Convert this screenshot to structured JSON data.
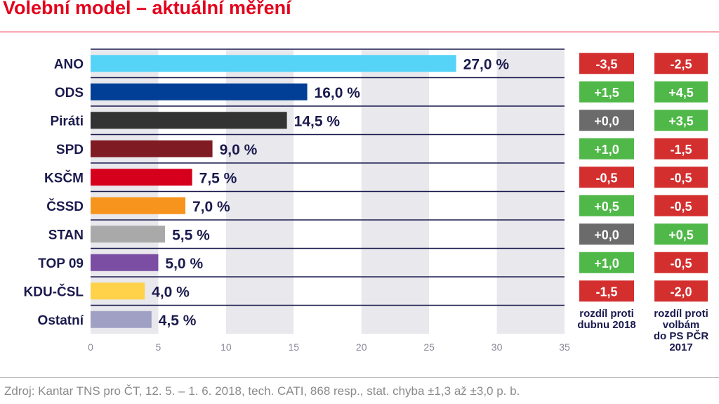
{
  "title": "Volební model – aktuální měření",
  "source": "Zdroj: Kantar TNS pro ČT, 12. 5. – 1. 6. 2018, tech. CATI, 868 resp., stat. chyba ±1,3 až ±3,0 p. b.",
  "chart_data": {
    "type": "bar",
    "orientation": "horizontal",
    "categories": [
      "ANO",
      "ODS",
      "Piráti",
      "SPD",
      "KSČM",
      "ČSSD",
      "STAN",
      "TOP 09",
      "KDU-ČSL",
      "Ostatní"
    ],
    "values": [
      27.0,
      16.0,
      14.5,
      9.0,
      7.5,
      7.0,
      5.5,
      5.0,
      4.0,
      4.5
    ],
    "value_labels": [
      "27,0 %",
      "16,0 %",
      "14,5 %",
      "9,0 %",
      "7,5 %",
      "7,0 %",
      "5,5 %",
      "5,0 %",
      "4,0 %",
      "4,5 %"
    ],
    "bar_colors": [
      "#56d4f7",
      "#003f95",
      "#333333",
      "#7f1b23",
      "#d6001c",
      "#f7941d",
      "#a9a9a9",
      "#7b4ea3",
      "#ffd24a",
      "#9fa0c3"
    ],
    "xlim": [
      0,
      35
    ],
    "xticks": [
      0,
      5,
      10,
      15,
      20,
      25,
      30,
      35
    ],
    "grid": "alternating vertical bands",
    "diff_columns": [
      {
        "header": [
          "rozdíl proti",
          "dubnu 2018"
        ],
        "values": [
          "-3,5",
          "+1,5",
          "+0,0",
          "+1,0",
          "-0,5",
          "+0,5",
          "+0,0",
          "+1,0",
          "-1,5"
        ]
      },
      {
        "header": [
          "rozdíl proti",
          "volbám",
          "do PS PČR",
          "2017"
        ],
        "values": [
          "-2,5",
          "+4,5",
          "+3,5",
          "-1,5",
          "-0,5",
          "-0,5",
          "+0,5",
          "-0,5",
          "-2,0"
        ]
      }
    ],
    "diff_colors": {
      "negative": "#d32f2f",
      "positive": "#4fb848",
      "zero": "#6b6b6b"
    }
  }
}
